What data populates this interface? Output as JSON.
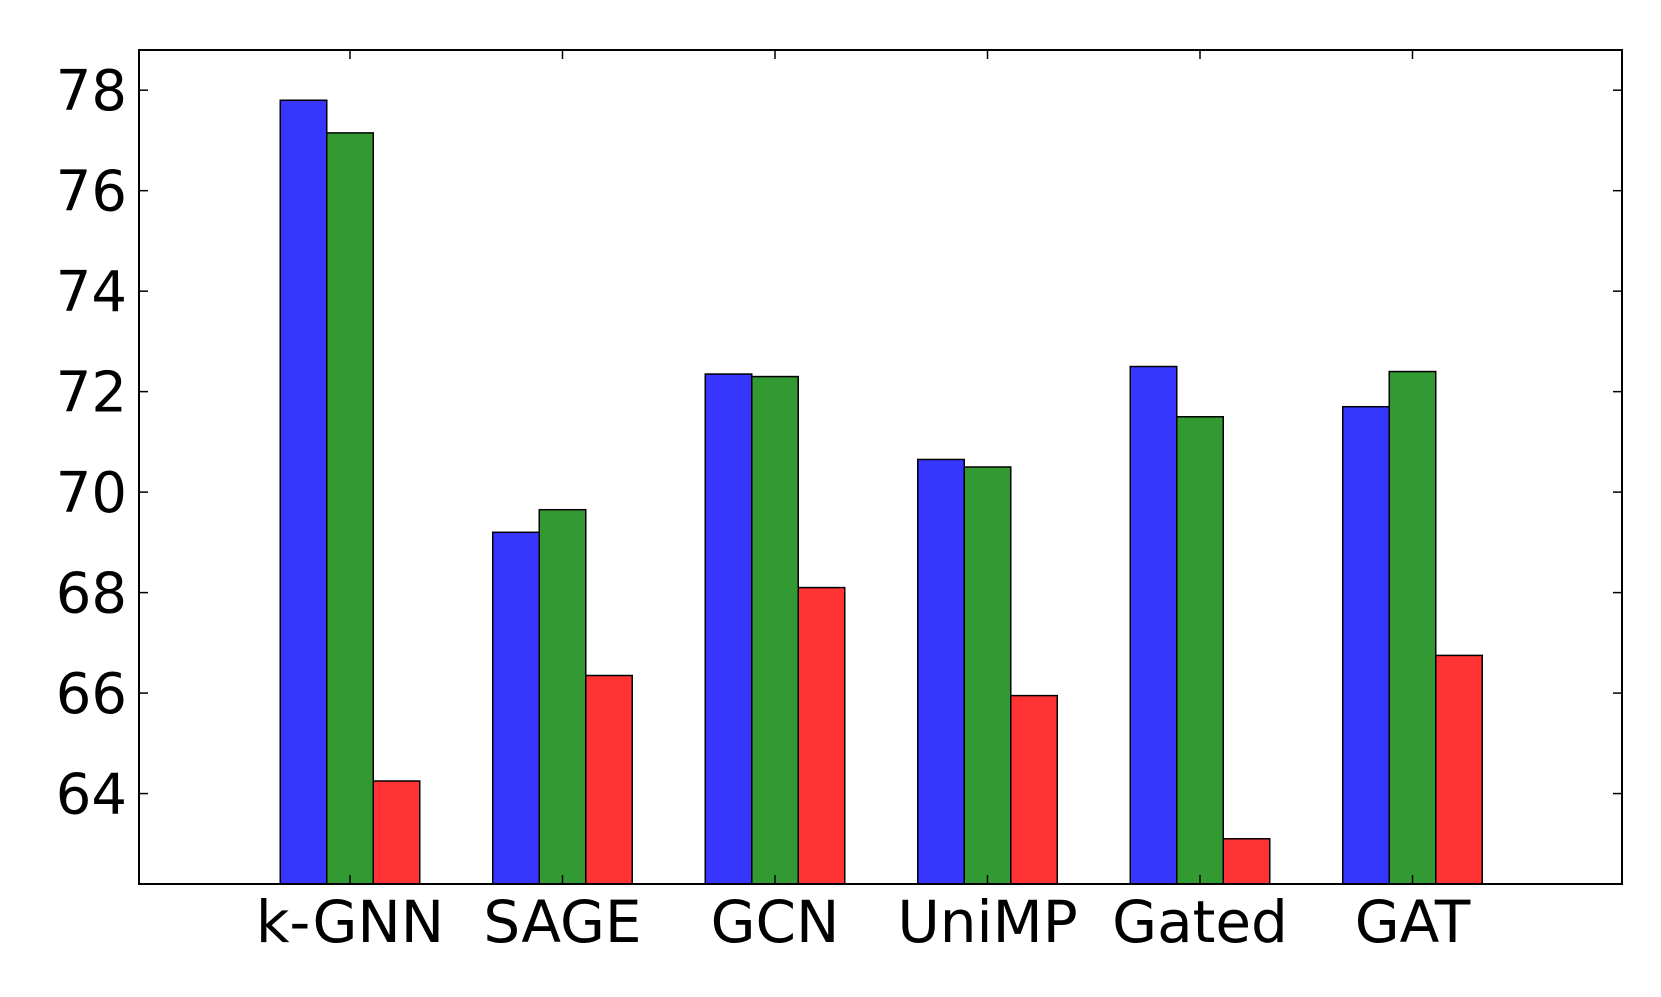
{
  "chart_data": {
    "type": "bar",
    "title": "",
    "xlabel": "",
    "ylabel": "",
    "categories": [
      "k-GNN",
      "SAGE",
      "GCN",
      "UniMP",
      "Gated",
      "GAT"
    ],
    "ylim": [
      62.2,
      78.8
    ],
    "yticks": [
      64,
      66,
      68,
      70,
      72,
      74,
      76,
      78
    ],
    "grid": false,
    "legend": "none",
    "series": [
      {
        "color": "#3636ff",
        "values": [
          77.8,
          69.2,
          72.35,
          70.65,
          72.5,
          71.7
        ]
      },
      {
        "color": "#339933",
        "values": [
          77.15,
          69.65,
          72.3,
          70.5,
          71.5,
          72.4
        ]
      },
      {
        "color": "#ff3333",
        "values": [
          64.25,
          66.35,
          68.1,
          65.95,
          63.1,
          66.75
        ]
      }
    ]
  }
}
